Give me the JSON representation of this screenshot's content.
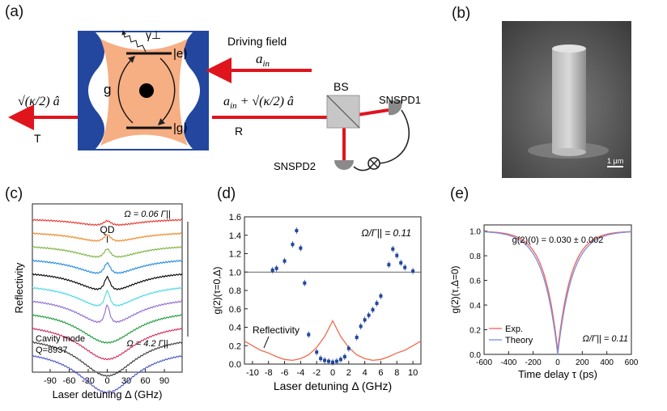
{
  "panels": {
    "a": "(a)",
    "b": "(b)",
    "c": "(c)",
    "d": "(d)",
    "e": "(e)"
  },
  "schematic": {
    "gamma": "γ⊥",
    "excited": "|e⟩",
    "ground": "|g⟩",
    "coupling": "g",
    "driving_field": "Driving field",
    "a_in": "a",
    "a_in_sub": "in",
    "reflected_expr": "a",
    "reflected_sub": "in",
    "reflected_tail": "+ √(κ/2) â",
    "transmitted_expr": "√(κ/2) â",
    "T": "T",
    "R": "R",
    "BS": "BS",
    "SNSPD1": "SNSPD1",
    "SNSPD2": "SNSPD2"
  },
  "sem": {
    "scale": "1 μm"
  },
  "colors": {
    "red": "#e0141c",
    "orange": "#f6ae83",
    "blue": "#23479e",
    "bs": "#c7c7c7"
  },
  "chart_data": [
    {
      "id": "c",
      "type": "line",
      "xlabel": "Laser detuning Δ (GHz)",
      "ylabel": "Reflectivity",
      "xticks": [
        -90,
        -60,
        -30,
        0,
        30,
        60,
        90
      ],
      "xlim": [
        -118,
        118
      ],
      "annotations": {
        "qd": "QD",
        "omega_top": "Ω = 0.06 Γ||",
        "omega_bottom": "Ω = 4.2 Γ||",
        "cavity": "Cavity mode",
        "q": "Q=8937"
      },
      "series_colors": [
        "#e8322b",
        "#e98b2a",
        "#7cb342",
        "#1e88e5",
        "#000000",
        "#4ed7e0",
        "#8e6bd1",
        "#1a9c3a",
        "#d32f5f",
        "#3a3a3a",
        "#4a56c8"
      ]
    },
    {
      "id": "d",
      "type": "scatter",
      "xlabel": "Laser detuning Δ (GHz)",
      "ylabel": "g(2)(τ=0,Δ)",
      "xlim": [
        -11,
        11
      ],
      "ylim": [
        0,
        1.6
      ],
      "xticks": [
        -10,
        -8,
        -6,
        -4,
        -2,
        0,
        2,
        4,
        6,
        8,
        10
      ],
      "yticks": [
        0.0,
        0.2,
        0.4,
        0.6,
        0.8,
        1.0,
        1.2,
        1.4,
        1.6
      ],
      "annotation": "Ω/Γ|| = 0.11",
      "reflectivity_label": "Reflectivity",
      "points": {
        "x": [
          -7.5,
          -7,
          -6,
          -5,
          -4.5,
          -4,
          -3.5,
          -3,
          -2,
          -1.5,
          -1,
          -0.5,
          0,
          0.5,
          1,
          1.5,
          2,
          3,
          3.5,
          4,
          4.5,
          5,
          5.5,
          6,
          7,
          7.5,
          8,
          8.5,
          9,
          10
        ],
        "y": [
          1.02,
          1.04,
          1.12,
          1.3,
          1.45,
          1.26,
          0.88,
          0.32,
          0.13,
          0.06,
          0.04,
          0.03,
          0.02,
          0.03,
          0.05,
          0.08,
          0.17,
          0.29,
          0.41,
          0.48,
          0.53,
          0.59,
          0.66,
          0.74,
          1.08,
          1.25,
          1.18,
          1.1,
          1.05,
          1.01
        ]
      },
      "reflectivity": {
        "x": [
          -11,
          -10,
          -9,
          -8,
          -7,
          -6,
          -5,
          -4,
          -3,
          -2,
          -1,
          0,
          1,
          2,
          3,
          4,
          5,
          6,
          7,
          8,
          9,
          10,
          11
        ],
        "y": [
          0.25,
          0.2,
          0.15,
          0.12,
          0.08,
          0.05,
          0.04,
          0.06,
          0.1,
          0.18,
          0.3,
          0.47,
          0.3,
          0.18,
          0.1,
          0.06,
          0.04,
          0.05,
          0.08,
          0.12,
          0.15,
          0.2,
          0.25
        ]
      }
    },
    {
      "id": "e",
      "type": "line",
      "xlabel": "Time delay τ (ps)",
      "ylabel": "g(2)(τ,Δ=0)",
      "xlim": [
        -600,
        600
      ],
      "ylim": [
        0,
        1.05
      ],
      "xticks": [
        -600,
        -400,
        -200,
        0,
        200,
        400,
        600
      ],
      "yticks": [
        0.0,
        0.2,
        0.4,
        0.6,
        0.8,
        1.0
      ],
      "annotation_top": "g(2)(0) = 0.030 ± 0.002",
      "annotation_bottom": "Ω/Γ|| = 0.11",
      "series": [
        {
          "name": "Exp.",
          "color": "#f0605a",
          "y0": 0.03,
          "width": 110
        },
        {
          "name": "Theory",
          "color": "#7c8ed8",
          "y0": 0.0,
          "width": 118
        }
      ]
    }
  ]
}
